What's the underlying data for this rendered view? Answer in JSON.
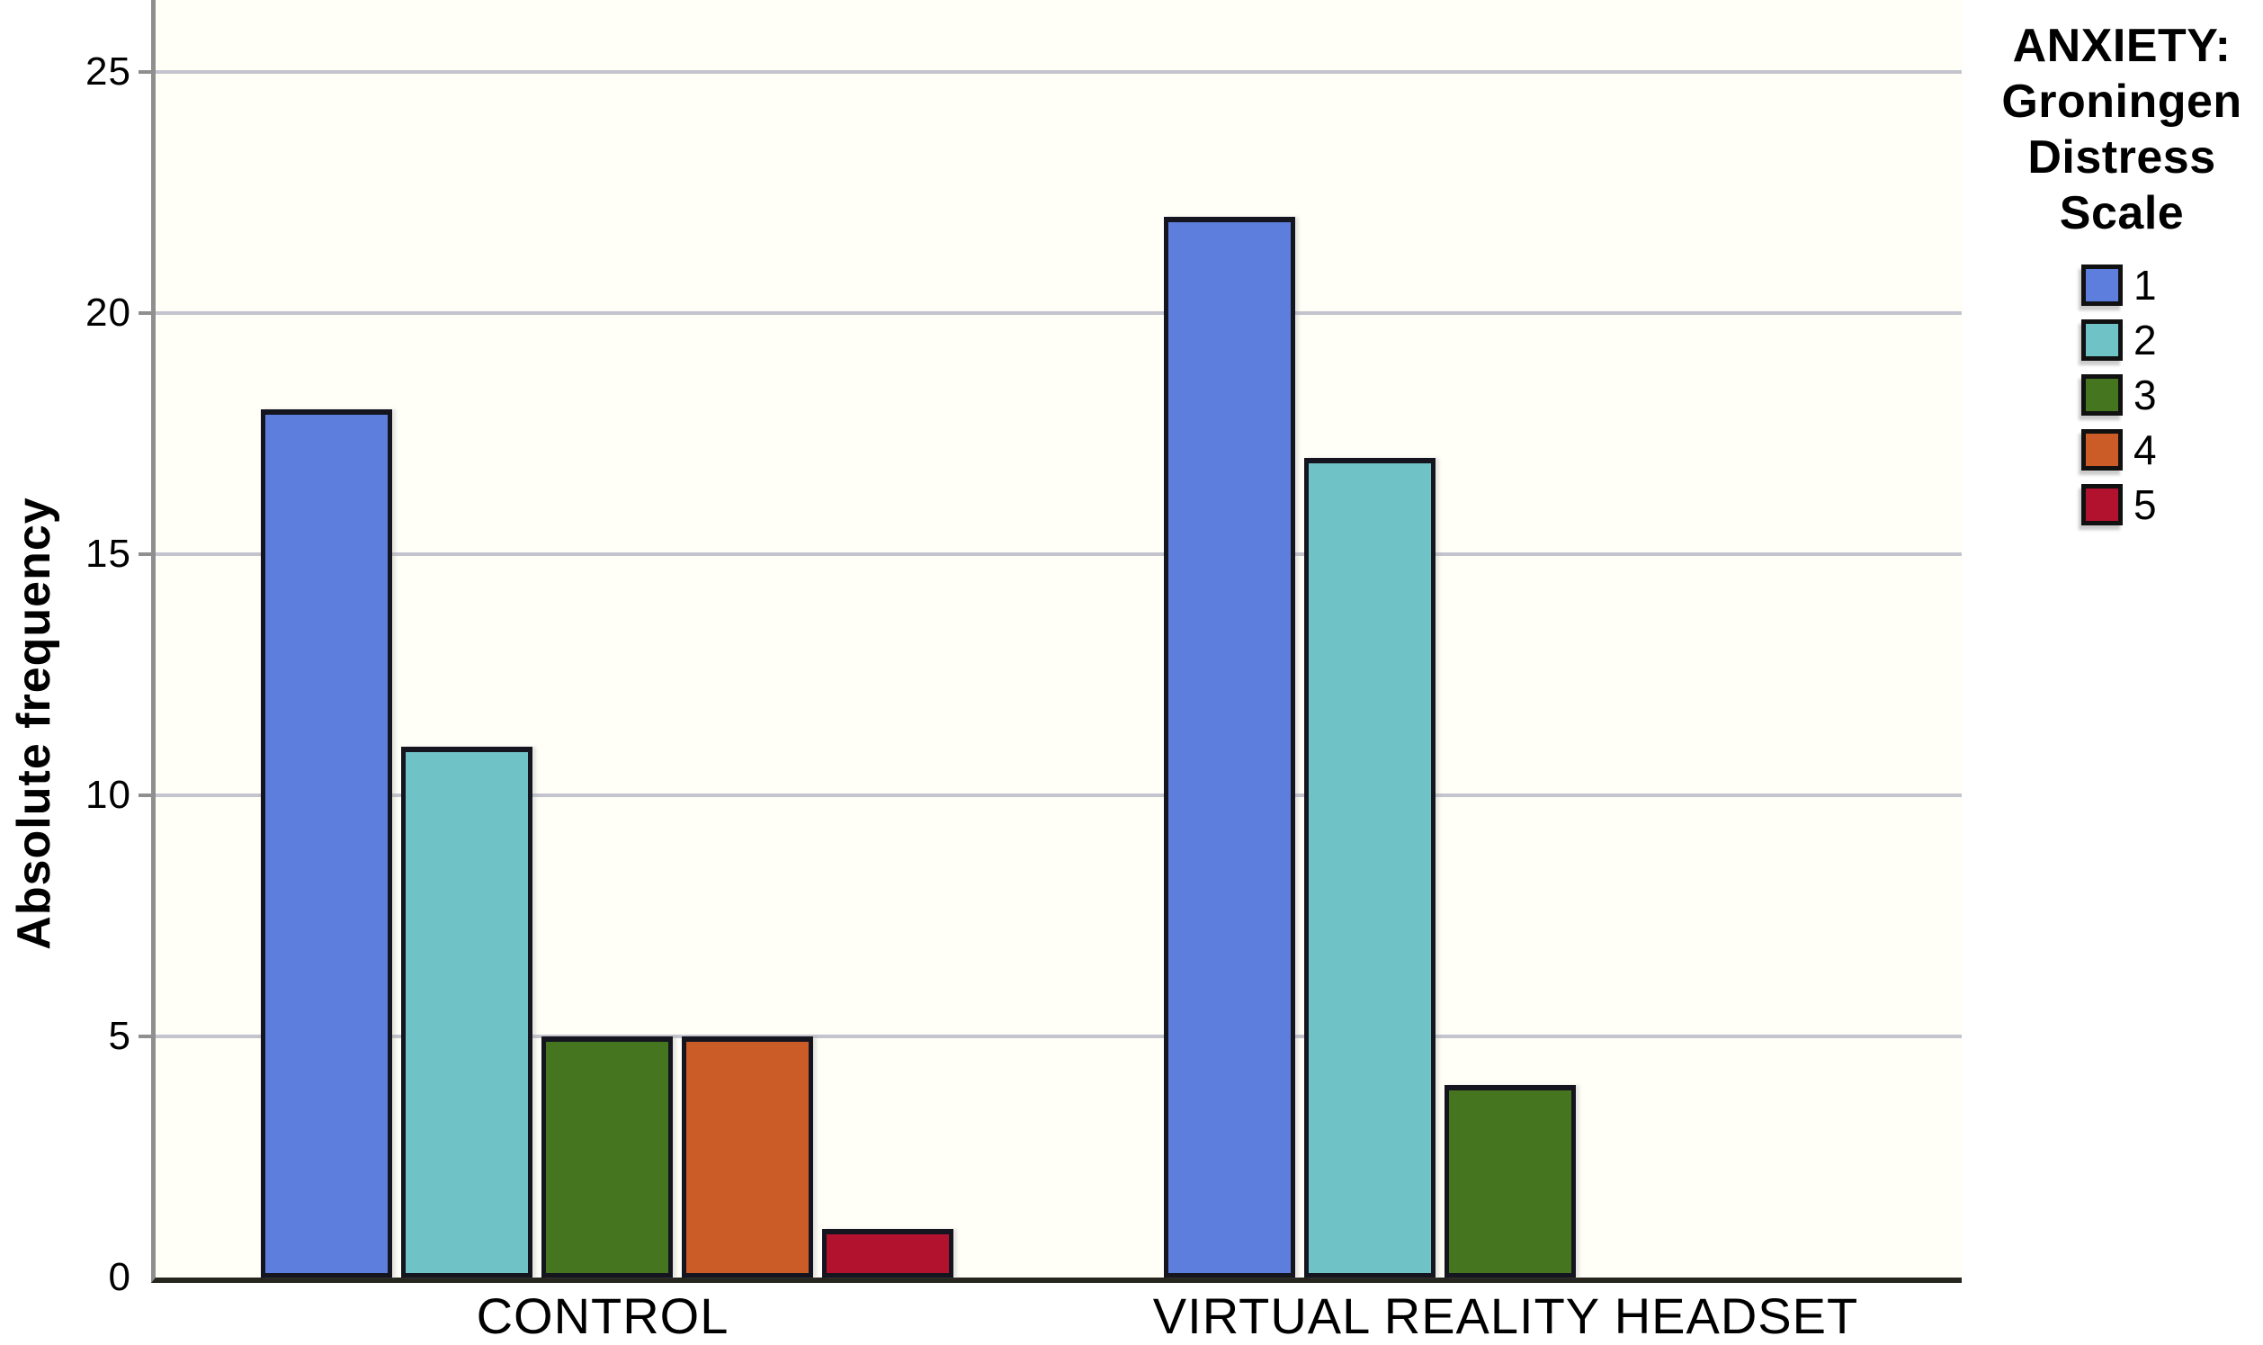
{
  "chart_data": {
    "type": "bar",
    "title": "",
    "xlabel": "",
    "ylabel": "Absolute frequency",
    "categories": [
      "CONTROL",
      "VIRTUAL REALITY HEADSET"
    ],
    "series": [
      {
        "name": "1",
        "color": "#5d7edd",
        "values": [
          18,
          22
        ]
      },
      {
        "name": "2",
        "color": "#6fc2c6",
        "values": [
          11,
          17
        ]
      },
      {
        "name": "3",
        "color": "#45751f",
        "values": [
          5,
          4
        ]
      },
      {
        "name": "4",
        "color": "#cb5b27",
        "values": [
          5,
          0
        ]
      },
      {
        "name": "5",
        "color": "#b3122f",
        "values": [
          1,
          0
        ]
      }
    ],
    "ylim": [
      0,
      26.5
    ],
    "yticks": [
      0,
      5,
      10,
      15,
      20,
      25
    ],
    "grid": true,
    "legend_position": "right-top",
    "legend_title_lines": [
      "ANXIETY:",
      "Groningen",
      "Distress",
      "Scale"
    ],
    "colors": {
      "gridline": "#c4c4ce",
      "y_axis": "#8f8f8f",
      "x_axis": "#26261f",
      "bar_border": "#15151f",
      "plot_background": "#fffef7"
    }
  }
}
